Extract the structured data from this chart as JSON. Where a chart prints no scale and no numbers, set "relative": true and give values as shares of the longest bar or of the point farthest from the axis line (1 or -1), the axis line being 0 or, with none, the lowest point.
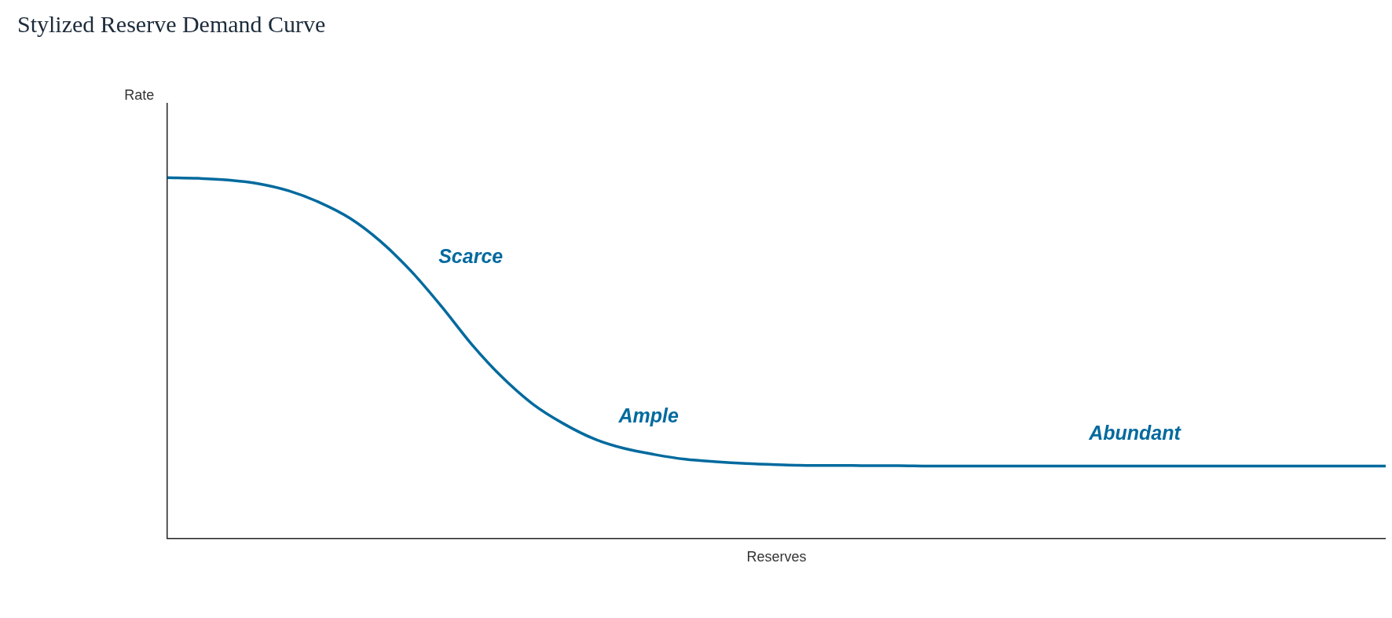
{
  "chart_data": {
    "type": "line",
    "title": "Stylized Reserve Demand Curve",
    "xlabel": "Reserves",
    "relative": true,
    "legend": false,
    "grid": false,
    "marker": "none",
    "line_style": "solid",
    "categories": [
      null,
      null,
      null,
      null,
      null,
      null,
      null,
      null,
      null,
      null,
      null,
      null,
      null,
      null,
      null,
      null,
      null,
      null,
      null,
      null,
      null,
      null,
      null,
      null,
      null,
      null,
      null,
      null,
      null,
      null,
      null,
      null,
      null,
      null,
      null,
      null,
      null,
      null,
      null,
      null,
      null
    ],
    "series": [
      {
        "color": "#006a9e",
        "values": [
          1.0,
          0.998,
          0.993,
          0.983,
          0.963,
          0.931,
          0.887,
          0.823,
          0.741,
          0.643,
          0.537,
          0.446,
          0.372,
          0.318,
          0.276,
          0.249,
          0.232,
          0.219,
          0.212,
          0.207,
          0.204,
          0.202,
          0.202,
          0.201,
          0.201,
          0.2,
          0.2,
          0.2,
          0.2,
          0.2,
          0.2,
          0.2,
          0.2,
          0.2,
          0.2,
          0.2,
          0.2,
          0.2,
          0.2,
          0.2,
          0.2
        ]
      }
    ],
    "annotations": [
      "Rate",
      "Scarce",
      "Ample",
      "Abundant"
    ]
  }
}
